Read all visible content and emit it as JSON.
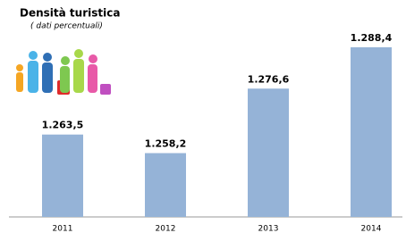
{
  "chart_data": {
    "type": "bar",
    "title": "Densità turistica",
    "subtitle": "( dati percentuali)",
    "categories": [
      "2011",
      "2012",
      "2013",
      "2014"
    ],
    "values": [
      1263.5,
      1258.2,
      1276.6,
      1288.4
    ],
    "value_labels": [
      "1.263,5",
      "1.258,2",
      "1.276,6",
      "1.288,4"
    ],
    "color": "#95b3d7",
    "ylim": [
      1240,
      1295
    ]
  }
}
